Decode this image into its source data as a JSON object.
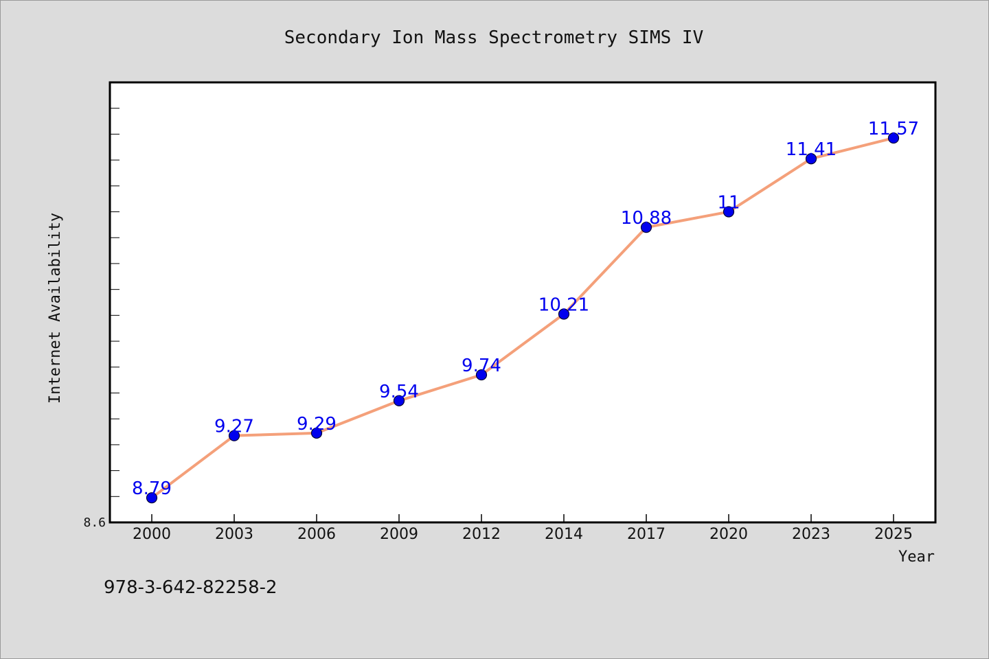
{
  "caption": "978-3-642-82258-2",
  "chart_data": {
    "type": "line",
    "title": "Secondary Ion Mass Spectrometry SIMS IV",
    "xlabel": "Year",
    "ylabel": "Internet Availability",
    "categories": [
      "2000",
      "2003",
      "2006",
      "2009",
      "2012",
      "2014",
      "2017",
      "2020",
      "2023",
      "2025"
    ],
    "values": [
      8.79,
      9.27,
      9.29,
      9.54,
      9.74,
      10.21,
      10.88,
      11,
      11.41,
      11.57
    ],
    "data_labels": [
      "8.79",
      "9.27",
      "9.29",
      "9.54",
      "9.74",
      "10.21",
      "10.88",
      "11",
      "11.41",
      "11.57"
    ],
    "ylim": [
      8.6,
      12.0
    ],
    "y_tick_labels": [
      "8.6"
    ],
    "grid": false,
    "legend": "none",
    "colors": {
      "line": "#f4a07a",
      "marker_fill": "#0000ee",
      "marker_stroke": "#000033",
      "label": "#0000ee",
      "plot_bg": "#ffffff",
      "figure_bg": "#dcdcdc"
    }
  }
}
